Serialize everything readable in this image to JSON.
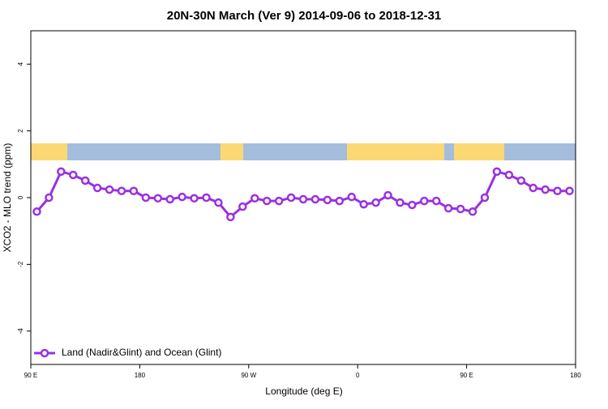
{
  "chart_data": {
    "type": "line",
    "title": "20N-30N March (Ver 9)   2014-09-06 to 2018-12-31",
    "x_label": "Longitude (deg E)",
    "y_label": "XCO2 - MLO trend (ppm)",
    "xlim": [
      90,
      540
    ],
    "xticks": [
      {
        "value": 90,
        "label": "90 E"
      },
      180,
      {
        "value": 270,
        "label": "90 W"
      },
      {
        "value": 360,
        "label": "0"
      },
      {
        "value": 450,
        "label": "90 E"
      },
      {
        "value": 540,
        "label": "180"
      }
    ],
    "ylim": [
      -5,
      5
    ],
    "yticks": [
      -4,
      -2,
      0,
      2,
      4
    ],
    "legend": "bottom-left",
    "series": [
      {
        "name": "Land (Nadir&Glint) and Ocean (Glint)",
        "color": "#9b30e0",
        "x": [
          95,
          105,
          115,
          125,
          135,
          145,
          155,
          165,
          175,
          185,
          195,
          205,
          215,
          225,
          235,
          245,
          255,
          265,
          275,
          285,
          295,
          305,
          315,
          325,
          335,
          345,
          355,
          365,
          375,
          385,
          395,
          405,
          415,
          425,
          435,
          445,
          455,
          465,
          475,
          485,
          495,
          505,
          515,
          525,
          535
        ],
        "values": [
          -0.42,
          0.0,
          0.78,
          0.68,
          0.51,
          0.29,
          0.24,
          0.2,
          0.2,
          0.0,
          -0.02,
          -0.05,
          0.02,
          -0.02,
          0.0,
          -0.15,
          -0.58,
          -0.27,
          -0.02,
          -0.1,
          -0.1,
          0.0,
          -0.05,
          -0.05,
          -0.07,
          -0.1,
          0.02,
          -0.2,
          -0.15,
          0.07,
          -0.15,
          -0.22,
          -0.1,
          -0.1,
          -0.32,
          -0.34,
          -0.42,
          0.0,
          0.78,
          0.68,
          0.51,
          0.29,
          0.24,
          0.2,
          0.2
        ]
      }
    ]
  }
}
